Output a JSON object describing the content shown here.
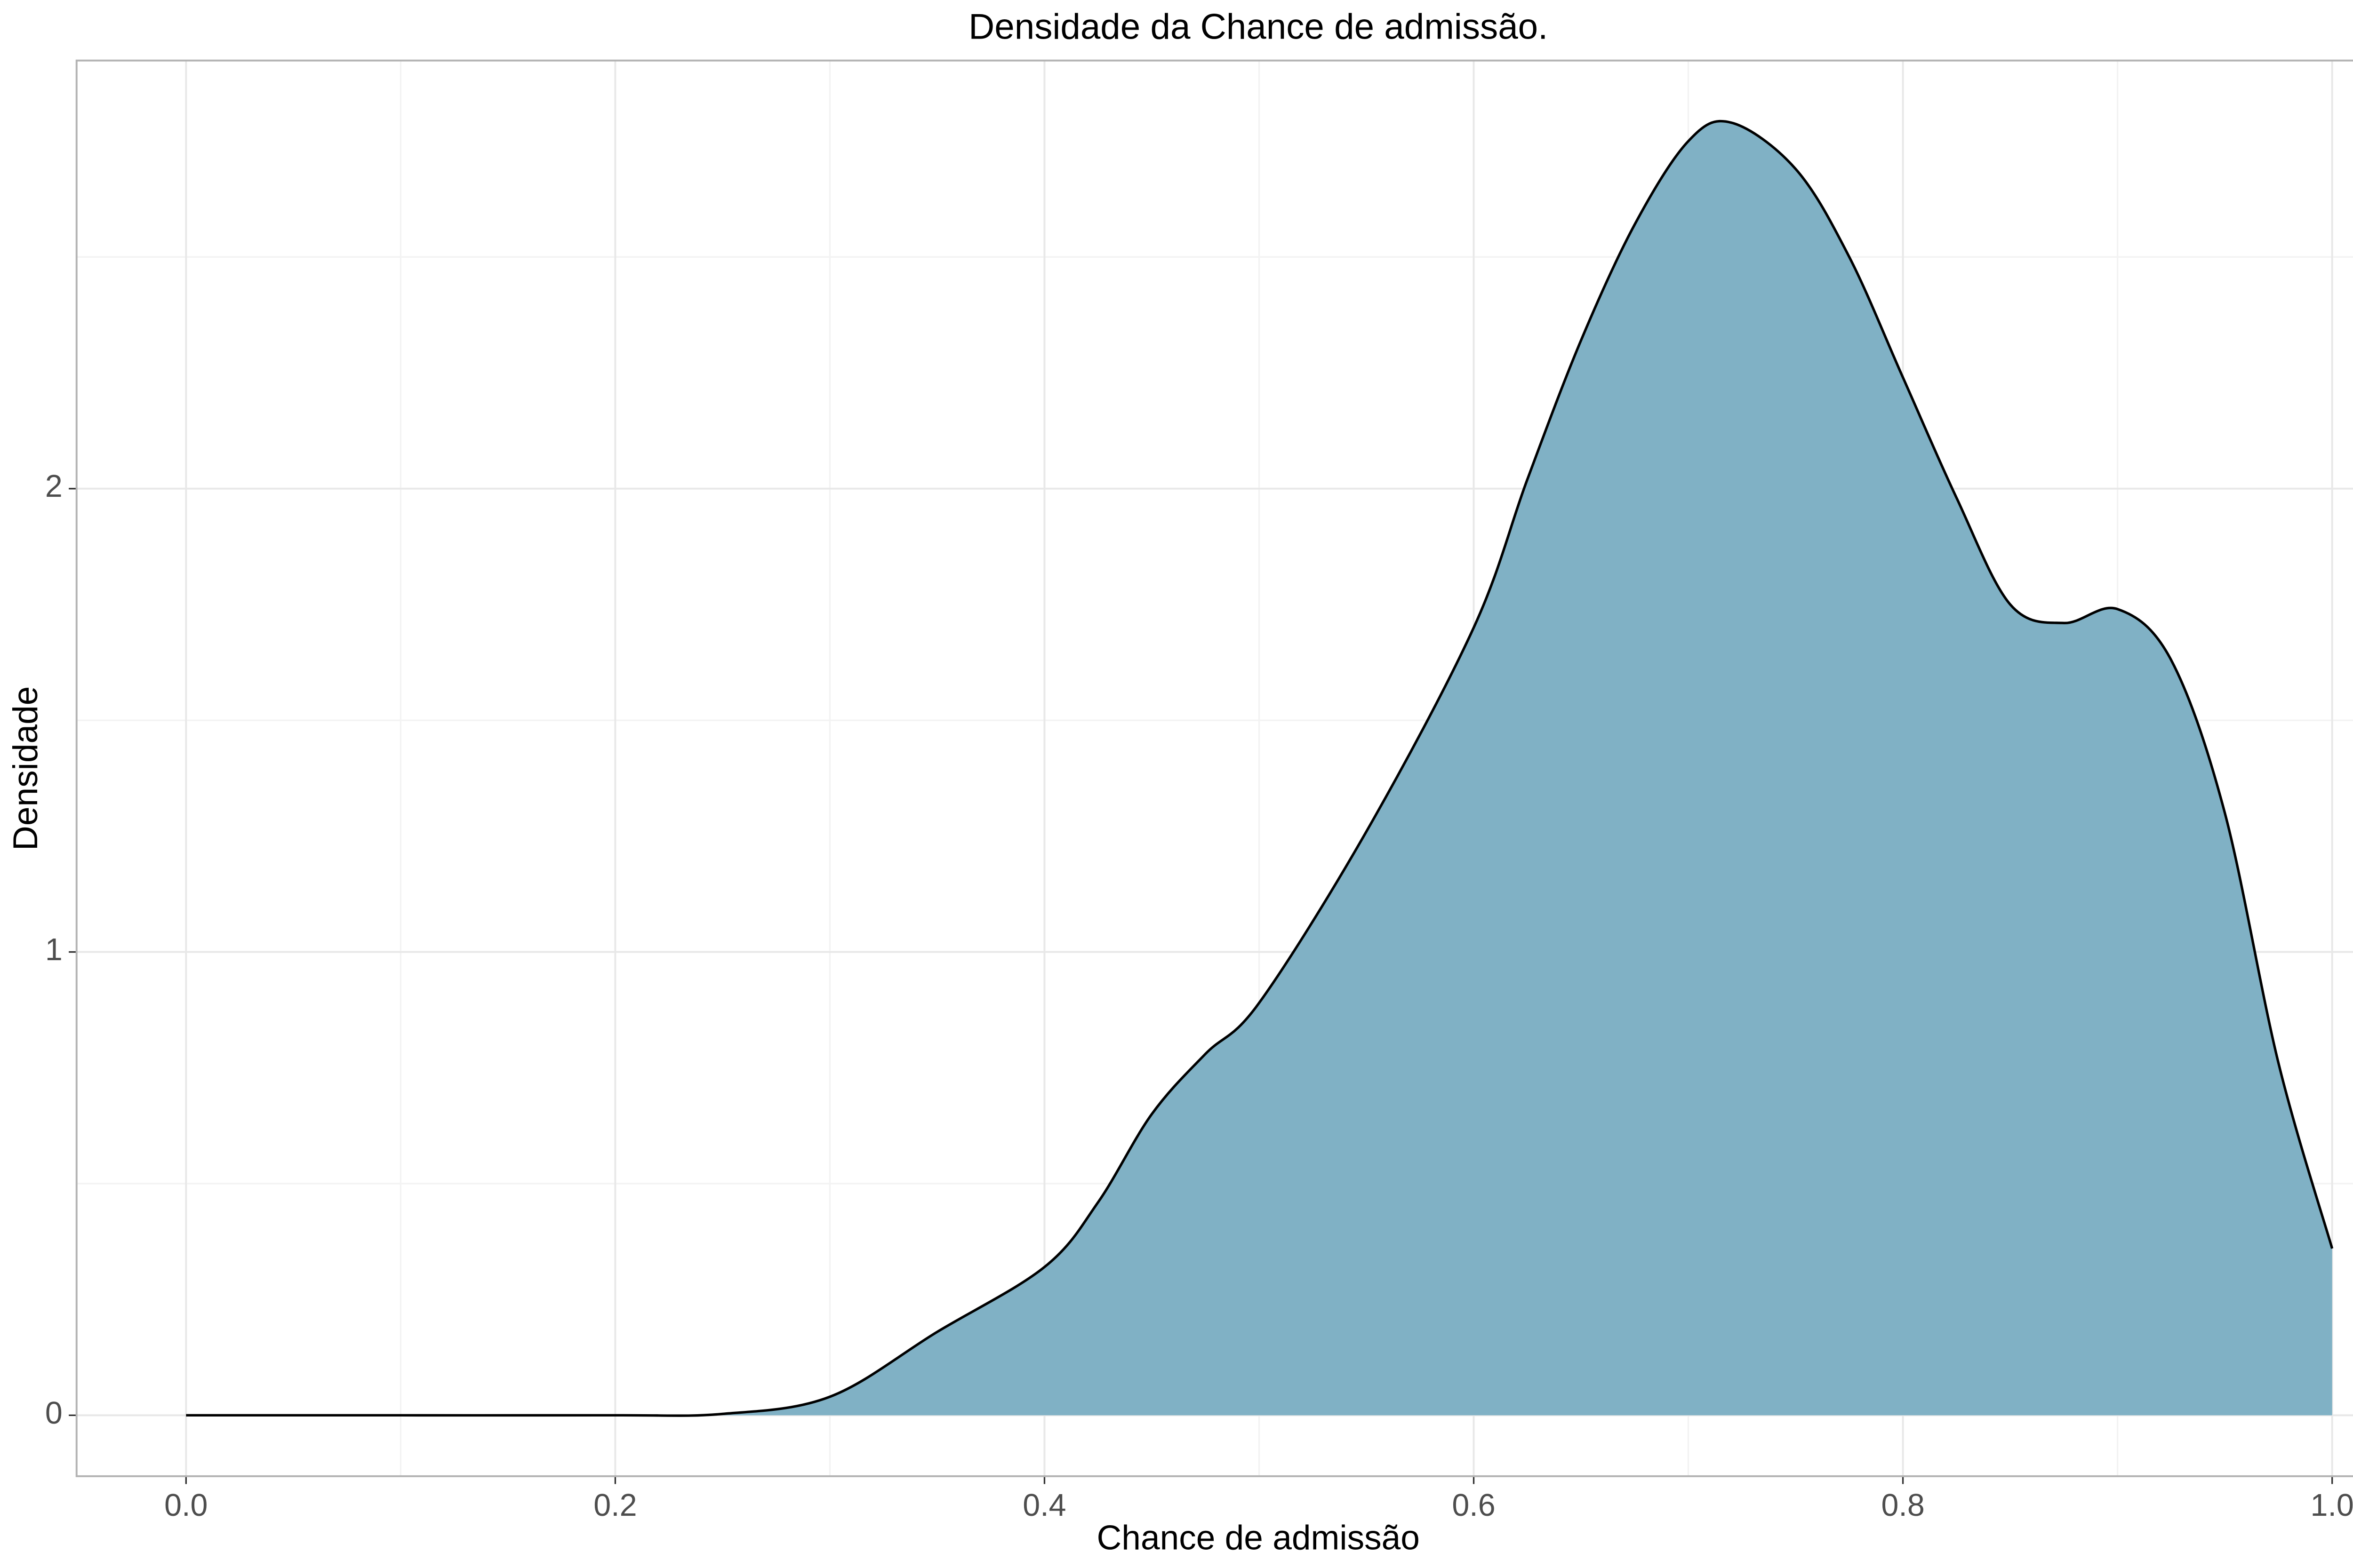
{
  "chart_data": {
    "type": "area",
    "title": "Densidade da Chance de admissão.",
    "xlabel": "Chance de admissão",
    "ylabel": "Densidade",
    "x": [
      0,
      0.1,
      0.2,
      0.25,
      0.3,
      0.35,
      0.4,
      0.425,
      0.45,
      0.475,
      0.5,
      0.55,
      0.6,
      0.625,
      0.65,
      0.675,
      0.7,
      0.72,
      0.75,
      0.775,
      0.8,
      0.825,
      0.85,
      0.875,
      0.9,
      0.925,
      0.95,
      0.975,
      1.0
    ],
    "series": [
      {
        "name": "Densidade",
        "color": "#80b1c5",
        "line_color": "#000000",
        "values": [
          0,
          0,
          0,
          0.003,
          0.04,
          0.18,
          0.32,
          0.46,
          0.65,
          0.78,
          0.89,
          1.26,
          1.7,
          2.02,
          2.32,
          2.57,
          2.75,
          2.79,
          2.69,
          2.5,
          2.24,
          1.98,
          1.75,
          1.71,
          1.74,
          1.63,
          1.3,
          0.76,
          0.36
        ]
      }
    ],
    "xlim": [
      -0.051,
      1.0495
    ],
    "ylim": [
      -0.1315,
      2.924
    ],
    "xticks": [
      {
        "value": 0,
        "label": "0.0"
      },
      {
        "value": 0.2,
        "label": "0.2"
      },
      {
        "value": 0.4,
        "label": "0.4"
      },
      {
        "value": 0.6,
        "label": "0.6"
      },
      {
        "value": 0.8,
        "label": "0.8"
      },
      {
        "value": 1.0,
        "label": "1.0"
      }
    ],
    "yticks": [
      0,
      1,
      2
    ],
    "xminorticks": [
      0.1,
      0.3,
      0.5,
      0.7,
      0.9
    ],
    "yminorticks": [
      0.5,
      1.5,
      2.5
    ],
    "grid": true
  }
}
